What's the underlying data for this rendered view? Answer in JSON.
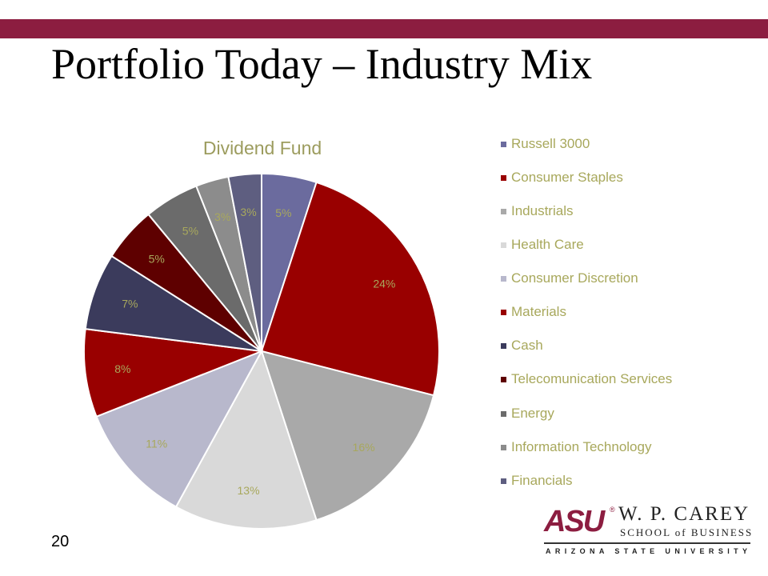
{
  "slide": {
    "title": "Portfolio Today – Industry Mix",
    "page_number": "20",
    "accent_color": "#8c1d40"
  },
  "logo": {
    "mark": "ASU",
    "registered": "®",
    "name": "W. P. CAREY",
    "school": "SCHOOL of BUSINESS",
    "university": "ARIZONA STATE UNIVERSITY"
  },
  "chart_data": {
    "type": "pie",
    "title": "Dividend Fund",
    "legend_position": "right",
    "categories": [
      "Russell 3000",
      "Consumer Staples",
      "Industrials",
      "Health Care",
      "Consumer Discretion",
      "Materials",
      "Cash",
      "Telecomunication Services",
      "Energy",
      "Information Technology",
      "Financials"
    ],
    "values": [
      5,
      24,
      16,
      13,
      11,
      8,
      7,
      5,
      5,
      3,
      3
    ],
    "data_labels": [
      "5%",
      "24%",
      "16%",
      "13%",
      "11%",
      "8%",
      "7%",
      "5%",
      "5%",
      "3%",
      "3%"
    ],
    "colors": [
      "#6b6b9e",
      "#990000",
      "#a9a9a9",
      "#d9d9d9",
      "#b8b8cc",
      "#990000",
      "#3b3b5c",
      "#5e0000",
      "#6b6b6b",
      "#8c8c8c",
      "#5e5e80"
    ],
    "label_color": "#a8a85c"
  }
}
